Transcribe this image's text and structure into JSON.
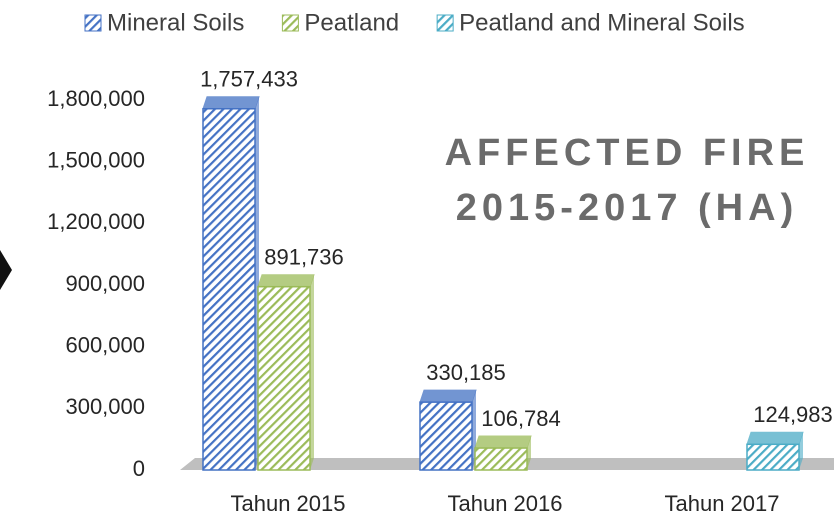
{
  "chart_data": {
    "type": "bar3d",
    "title": [
      "AFFECTED FIRE",
      "2015-2017 (HA)"
    ],
    "categories": [
      "Tahun 2015",
      "Tahun 2016",
      "Tahun 2017"
    ],
    "series": [
      {
        "name": "Mineral Soils",
        "color": "#4472c4",
        "values": [
          1757433,
          330185,
          null
        ],
        "value_labels": [
          "1,757,433",
          "330,185",
          null
        ]
      },
      {
        "name": "Peatland",
        "color": "#9bbb59",
        "values": [
          891736,
          106784,
          null
        ],
        "value_labels": [
          "891,736",
          "106,784",
          null
        ]
      },
      {
        "name": "Peatland and Mineral Soils",
        "color": "#4bacc6",
        "values": [
          null,
          null,
          124983
        ],
        "value_labels": [
          null,
          null,
          "124,983"
        ]
      }
    ],
    "ylim": [
      0,
      1800000
    ],
    "yticks": [
      0,
      {
        "value": 300000,
        "label": "300,000"
      },
      {
        "value": 600000,
        "label": "600,000"
      },
      {
        "value": 900000,
        "label": "900,000"
      },
      {
        "value": 1200000,
        "label": "1,200,000"
      },
      {
        "value": 1500000,
        "label": "1,500,000"
      },
      {
        "value": 1800000,
        "label": "1,800,000"
      }
    ],
    "legend": "top",
    "hatched": true
  }
}
